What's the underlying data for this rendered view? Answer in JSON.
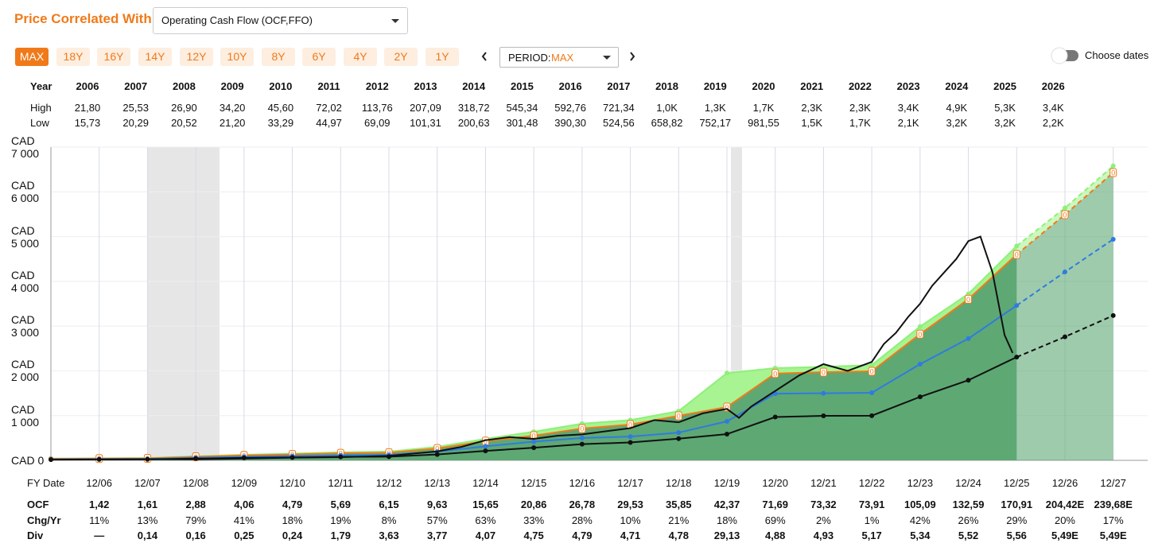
{
  "header": {
    "title": "Price Correlated With",
    "dropdown": "Operating Cash Flow (OCF,FFO)"
  },
  "period_buttons": [
    "MAX",
    "18Y",
    "16Y",
    "14Y",
    "12Y",
    "10Y",
    "8Y",
    "6Y",
    "4Y",
    "2Y",
    "1Y"
  ],
  "period_selector": {
    "label": "PERIOD:",
    "value": "MAX"
  },
  "toggle_label": "Choose dates",
  "year_table": {
    "header": "Year",
    "years": [
      "2006",
      "2007",
      "2008",
      "2009",
      "2010",
      "2011",
      "2012",
      "2013",
      "2014",
      "2015",
      "2016",
      "2017",
      "2018",
      "2019",
      "2020",
      "2021",
      "2022",
      "2023",
      "2024",
      "2025",
      "2026"
    ],
    "high_label": "High",
    "high": [
      "21,80",
      "25,53",
      "26,90",
      "34,20",
      "45,60",
      "72,02",
      "113,76",
      "207,09",
      "318,72",
      "545,34",
      "592,76",
      "721,34",
      "1,0K",
      "1,3K",
      "1,7K",
      "2,3K",
      "2,3K",
      "3,4K",
      "4,9K",
      "5,3K",
      "3,4K"
    ],
    "low_label": "Low",
    "low": [
      "15,73",
      "20,29",
      "20,52",
      "21,20",
      "33,29",
      "44,97",
      "69,09",
      "101,31",
      "200,63",
      "301,48",
      "390,30",
      "524,56",
      "658,82",
      "752,17",
      "981,55",
      "1,5K",
      "1,7K",
      "2,1K",
      "3,2K",
      "3,2K",
      "2,2K"
    ]
  },
  "chart_data": {
    "type": "line",
    "x_label": "FY Date",
    "categories": [
      null,
      "12/06",
      "12/07",
      "12/08",
      "12/09",
      "12/10",
      "12/11",
      "12/12",
      "12/13",
      "12/14",
      "12/15",
      "12/16",
      "12/17",
      "12/18",
      "12/19",
      "12/20",
      "12/21",
      "12/22",
      "12/23",
      "12/24",
      "12/25",
      "12/26",
      "12/27"
    ],
    "projection_start": "12/25",
    "ylim": [
      0,
      7000
    ],
    "yticks": [
      {
        "value": 0,
        "label": "CAD 0"
      },
      {
        "value": 1000,
        "label": "CAD 1 000"
      },
      {
        "value": 2000,
        "label": "CAD 2 000"
      },
      {
        "value": 3000,
        "label": "CAD 3 000"
      },
      {
        "value": 4000,
        "label": "CAD 4 000"
      },
      {
        "value": 5000,
        "label": "CAD 5 000"
      },
      {
        "value": 6000,
        "label": "CAD 6 000"
      },
      {
        "value": 7000,
        "label": "CAD 7 000"
      }
    ],
    "grid": true,
    "series": [
      {
        "color": "#8ef07a",
        "fill": "#a8f392",
        "values": [
          40,
          45,
          50,
          90,
          125,
          150,
          180,
          195,
          300,
          480,
          640,
          820,
          900,
          1100,
          1950,
          2060,
          2090,
          2130,
          2990,
          3720,
          4790,
          5640,
          6580
        ]
      },
      {
        "color": "#f07a1a",
        "fill": "#5ea874",
        "marker_label": "0",
        "values": [
          35,
          40,
          45,
          80,
          110,
          132,
          157,
          170,
          265,
          430,
          550,
          710,
          800,
          995,
          1190,
          1940,
          1970,
          1990,
          2820,
          3600,
          4600,
          5490,
          6430
        ]
      },
      {
        "color": "#2f7be0",
        "values": [
          22,
          28,
          32,
          58,
          81,
          96,
          114,
          123,
          193,
          313,
          417,
          500,
          530,
          620,
          870,
          1490,
          1500,
          1510,
          2150,
          2720,
          3460,
          4210,
          4940
        ]
      },
      {
        "color": "#111111",
        "values": [
          15,
          19,
          22,
          39,
          55,
          65,
          77,
          83,
          130,
          211,
          282,
          362,
          399,
          484,
          586,
          968,
          995,
          998,
          1419,
          1790,
          2307,
          2760,
          3236
        ]
      }
    ],
    "price": {
      "color": "#111111",
      "x": [
        "12/06",
        "12/07",
        "12/08",
        "12/09",
        "12/10",
        "12/11",
        "12/12",
        "06/13",
        "12/13",
        "06/14",
        "12/14",
        "06/15",
        "12/15",
        "06/16",
        "12/16",
        "06/17",
        "12/17",
        "06/18",
        "12/18",
        "06/19",
        "12/19",
        "03/20",
        "06/20",
        "12/20",
        "06/21",
        "12/21",
        "06/22",
        "12/22",
        "03/23",
        "06/23",
        "09/23",
        "12/23",
        "03/24",
        "06/24",
        "09/24",
        "12/24",
        "03/25",
        "06/25",
        "09/25",
        "11/25"
      ],
      "values": [
        20,
        24,
        22,
        40,
        60,
        70,
        100,
        150,
        200,
        300,
        450,
        520,
        480,
        550,
        580,
        650,
        720,
        900,
        850,
        1050,
        1150,
        950,
        1200,
        1550,
        1900,
        2150,
        2000,
        2200,
        2600,
        2850,
        3200,
        3500,
        3900,
        4200,
        4500,
        4900,
        5000,
        4200,
        2800,
        2400
      ]
    }
  },
  "bottom_table": {
    "rows": [
      {
        "label": "OCF",
        "values": [
          "1,42",
          "1,61",
          "2,88",
          "4,06",
          "4,79",
          "5,69",
          "6,15",
          "9,63",
          "15,65",
          "20,86",
          "26,78",
          "29,53",
          "35,85",
          "42,37",
          "71,69",
          "73,32",
          "73,91",
          "105,09",
          "132,59",
          "170,91",
          "204,42E",
          "239,68E"
        ]
      },
      {
        "label": "Chg/Yr",
        "values": [
          "11%",
          "13%",
          "79%",
          "41%",
          "18%",
          "19%",
          "8%",
          "57%",
          "63%",
          "33%",
          "28%",
          "10%",
          "21%",
          "18%",
          "69%",
          "2%",
          "1%",
          "42%",
          "26%",
          "29%",
          "20%",
          "17%"
        ]
      },
      {
        "label": "Div",
        "values": [
          "—",
          "0,14",
          "0,16",
          "0,25",
          "0,24",
          "1,79",
          "3,63",
          "3,77",
          "4,07",
          "4,75",
          "4,79",
          "4,71",
          "4,78",
          "29,13",
          "4,88",
          "4,93",
          "5,17",
          "5,34",
          "5,52",
          "5,56",
          "5,49E",
          "5,49E"
        ]
      }
    ]
  }
}
